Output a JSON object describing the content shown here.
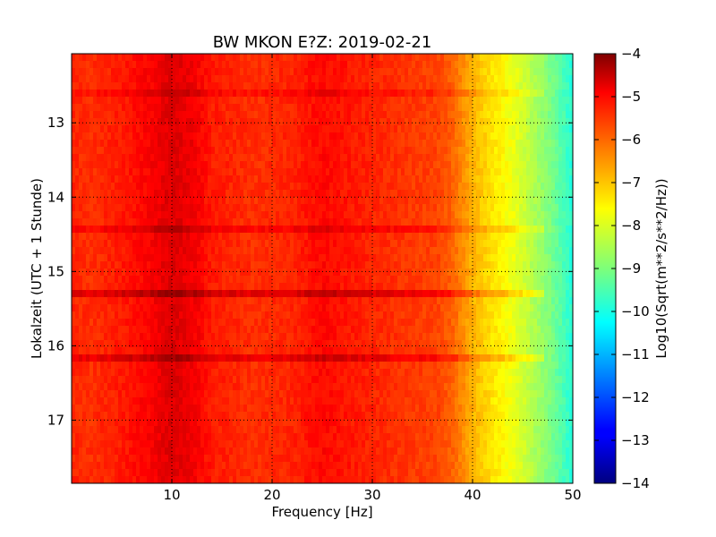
{
  "chart_data": {
    "type": "heatmap",
    "title": "BW MKON E?Z: 2019-02-21",
    "xlabel": "Frequency [Hz]",
    "ylabel": "Lokalzeit (UTC + 1 Stunde)",
    "colorbar_label": "Log10(Sqrt(m**2/s**2/Hz))",
    "xlim": [
      0,
      50
    ],
    "ylim": [
      12.07,
      17.85
    ],
    "y_inverted": true,
    "x_ticks": [
      10,
      20,
      30,
      40,
      50
    ],
    "x_tick_labels": [
      "10",
      "20",
      "30",
      "40",
      "50"
    ],
    "y_ticks": [
      13,
      14,
      15,
      16,
      17
    ],
    "y_tick_labels": [
      "13",
      "14",
      "15",
      "16",
      "17"
    ],
    "colorbar": {
      "colormap": "jet",
      "range": [
        -14,
        -4
      ],
      "ticks": [
        -4,
        -5,
        -6,
        -7,
        -8,
        -9,
        -10,
        -11,
        -12,
        -13,
        -14
      ],
      "tick_labels": [
        "−4",
        "−5",
        "−6",
        "−7",
        "−8",
        "−9",
        "−10",
        "−11",
        "−12",
        "−13",
        "−14"
      ]
    },
    "grid": "dotted",
    "profile": {
      "frequency": [
        0,
        2,
        5,
        8,
        10,
        12,
        14,
        18,
        22,
        25,
        30,
        34,
        36.5,
        38,
        40,
        42,
        44,
        46,
        48,
        50
      ],
      "value": [
        -5.6,
        -5.7,
        -5.5,
        -5.2,
        -4.9,
        -5.1,
        -5.5,
        -5.7,
        -5.6,
        -5.3,
        -5.6,
        -5.8,
        -5.9,
        -6.2,
        -7.0,
        -7.5,
        -7.9,
        -8.5,
        -9.1,
        -9.9
      ]
    },
    "bands": [
      {
        "time": 14.45,
        "value_delta": 0.4
      },
      {
        "time": 15.27,
        "value_delta": 0.7
      },
      {
        "time": 16.18,
        "value_delta": 0.6
      },
      {
        "time": 12.62,
        "value_delta": 0.3
      }
    ]
  }
}
